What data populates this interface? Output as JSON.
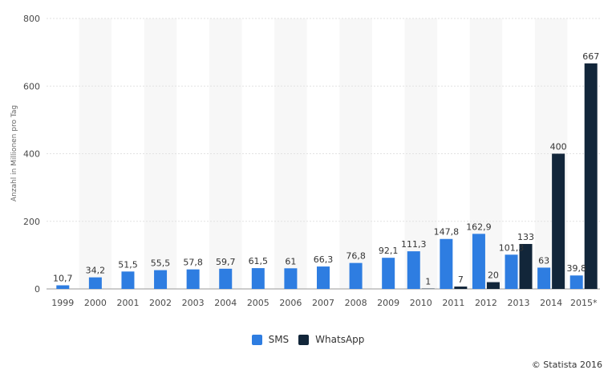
{
  "chart_data": {
    "type": "bar",
    "categories": [
      "1999",
      "2000",
      "2001",
      "2002",
      "2003",
      "2004",
      "2005",
      "2006",
      "2007",
      "2008",
      "2009",
      "2010",
      "2011",
      "2012",
      "2013",
      "2014",
      "2015*"
    ],
    "series": [
      {
        "name": "SMS",
        "color": "#2e7de1",
        "values": [
          10.7,
          34.2,
          51.5,
          55.5,
          57.8,
          59.7,
          61.5,
          61,
          66.3,
          76.8,
          92.1,
          111.3,
          147.8,
          162.9,
          101.3,
          63,
          39.8
        ],
        "labels": [
          "10,7",
          "34,2",
          "51,5",
          "55,5",
          "57,8",
          "59,7",
          "61,5",
          "61",
          "66,3",
          "76,8",
          "92,1",
          "111,3",
          "147,8",
          "162,9",
          "101,3",
          "63",
          "39,8"
        ]
      },
      {
        "name": "WhatsApp",
        "color": "#12263a",
        "values": [
          null,
          null,
          null,
          null,
          null,
          null,
          null,
          null,
          null,
          null,
          null,
          1,
          7,
          20,
          133,
          400,
          667
        ],
        "labels": [
          null,
          null,
          null,
          null,
          null,
          null,
          null,
          null,
          null,
          null,
          null,
          "1",
          "7",
          "20",
          "133",
          "400",
          "667"
        ]
      }
    ],
    "ylabel": "Anzahl in Millionen pro Tag",
    "xlabel": "",
    "ylim": [
      0,
      800
    ],
    "yticks": [
      0,
      200,
      400,
      600,
      800
    ],
    "grid": true,
    "legend": "bottom-center"
  },
  "credit": "© Statista 2016"
}
